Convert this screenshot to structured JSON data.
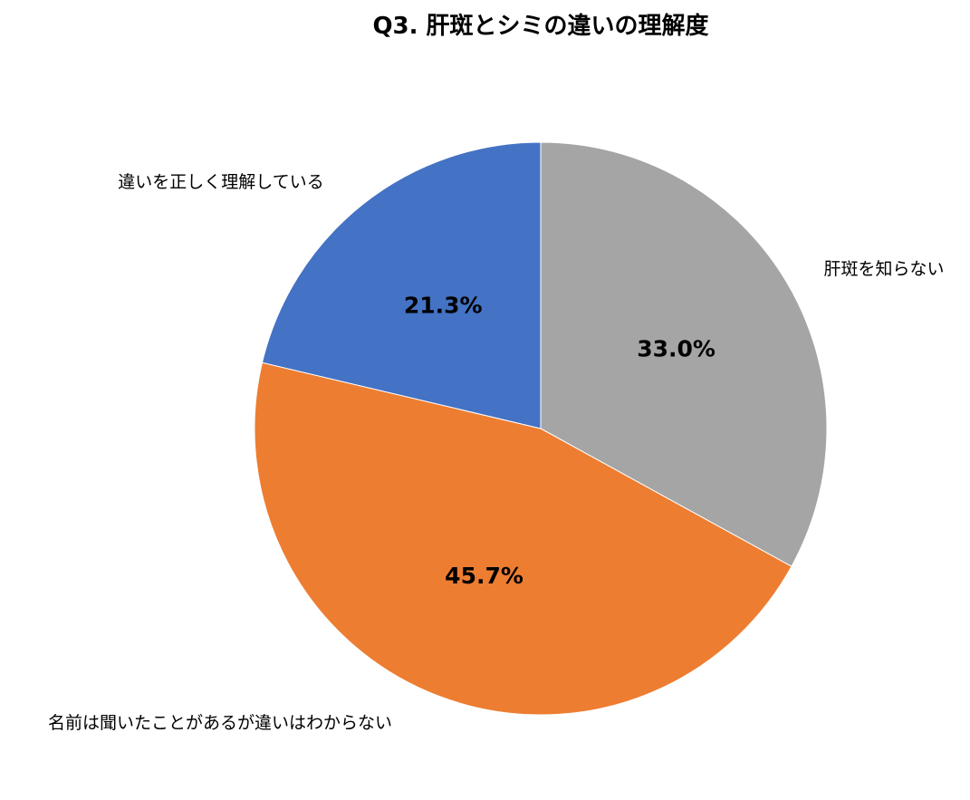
{
  "chart_data": {
    "type": "pie",
    "title": "Q3. 肝斑とシミの違いの理解度",
    "categories": [
      "肝斑を知らない",
      "名前は聞いたことがあるが違いはわからない",
      "違いを正しく理解している"
    ],
    "values": [
      33.0,
      45.7,
      21.3
    ],
    "data_labels": [
      "33.0%",
      "45.7%",
      "21.3%"
    ],
    "colors": [
      "#A5A5A5",
      "#ED7D31",
      "#4472C4"
    ],
    "start": "12 o'clock",
    "direction": "clockwise",
    "legend": "none"
  }
}
